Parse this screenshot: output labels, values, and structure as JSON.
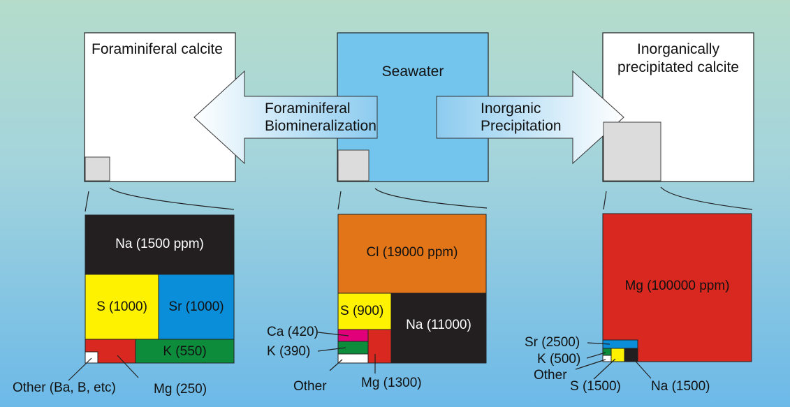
{
  "colors": {
    "mg": "#d8281f",
    "na": "#231f20",
    "s": "#fff200",
    "sr": "#0b8ed9",
    "k": "#0d8c3c",
    "ca": "#e2007a",
    "cl": "#e37519",
    "other": "#ffffff",
    "seawater": "#74c5ee",
    "inset": "#dcdcdc"
  },
  "panels": {
    "foram": {
      "title": "Foraminiferal calcite"
    },
    "seawater": {
      "title": "Seawater"
    },
    "inorganic": {
      "title_line1": "Inorganically",
      "title_line2": "precipitated calcite"
    }
  },
  "arrows": {
    "left": {
      "line1": "Foraminiferal",
      "line2": "Biomineralization"
    },
    "right": {
      "line1": "Inorganic",
      "line2": "Precipitation"
    }
  },
  "breakdowns": {
    "foram": {
      "na": "Na (1500 ppm)",
      "s": "S (1000)",
      "sr": "Sr (1000)",
      "k": "K (550)",
      "other": "Other (Ba, B, etc)",
      "mg": "Mg (250)"
    },
    "seawater": {
      "cl": "Cl (19000 ppm)",
      "s": "S (900)",
      "na": "Na (11000)",
      "ca": "Ca (420)",
      "k": "K (390)",
      "other": "Other",
      "mg": "Mg (1300)"
    },
    "inorganic": {
      "mg": "Mg (100000 ppm)",
      "sr": "Sr (2500)",
      "k": "K (500)",
      "other": "Other",
      "s": "S (1500)",
      "na": "Na (1500)"
    }
  }
}
